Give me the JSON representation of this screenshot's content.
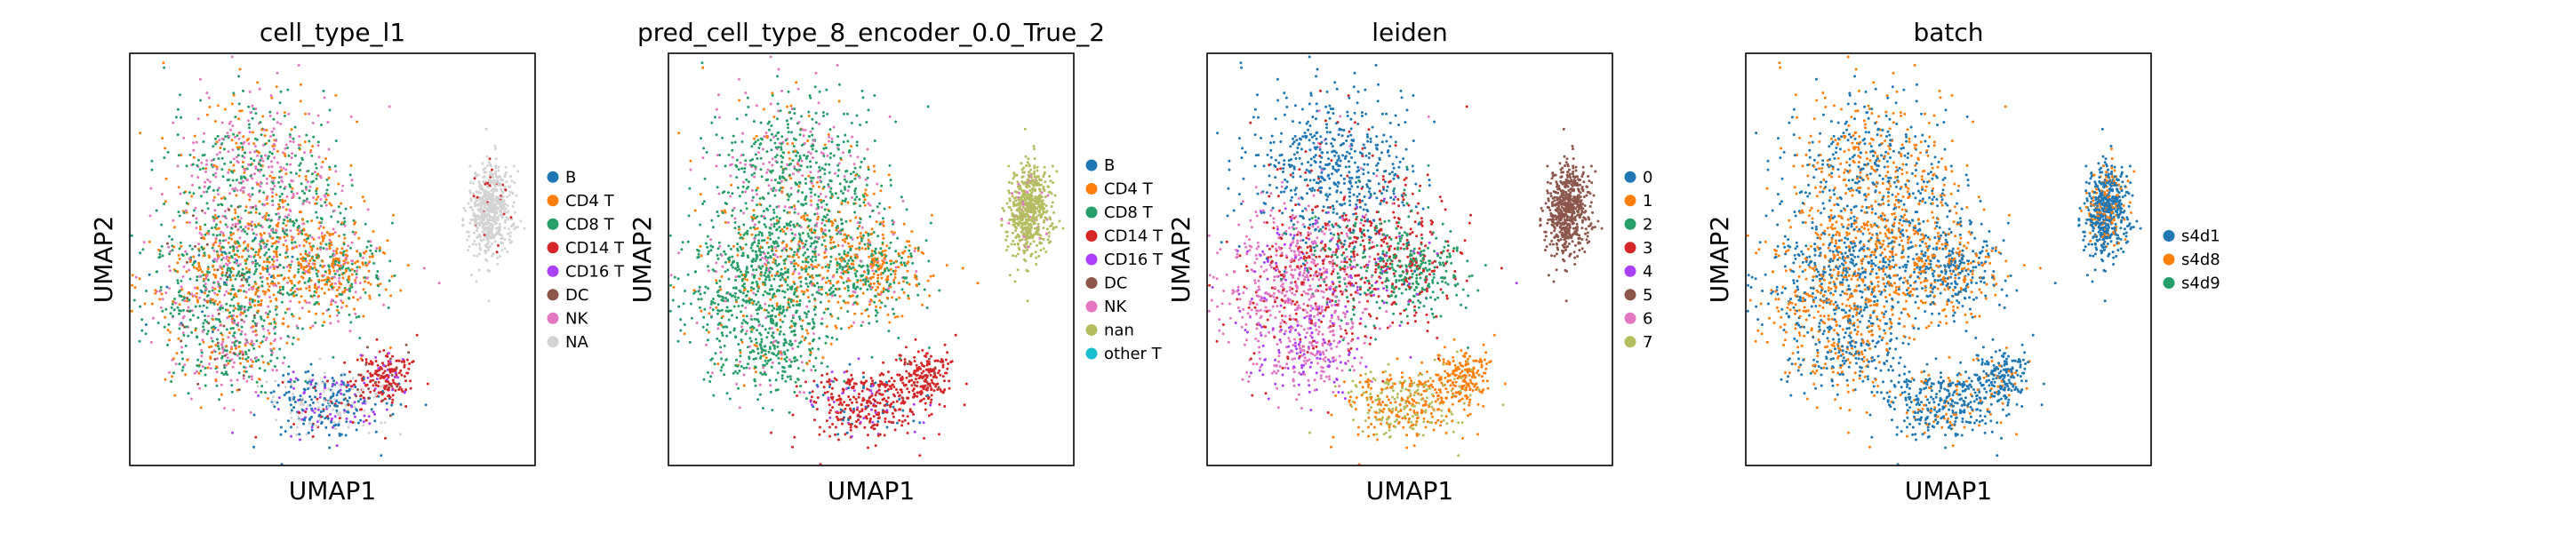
{
  "chart_data": [
    {
      "type": "scatter",
      "title": "cell_type_l1",
      "xlabel": "UMAP1",
      "ylabel": "UMAP2",
      "legend_position": "right",
      "legend": [
        {
          "label": "B",
          "color": "#1f77b4"
        },
        {
          "label": "CD4 T",
          "color": "#ff7f0e"
        },
        {
          "label": "CD8 T",
          "color": "#279e68"
        },
        {
          "label": "CD14 T",
          "color": "#d62728"
        },
        {
          "label": "CD16 T",
          "color": "#aa40fc"
        },
        {
          "label": "DC",
          "color": "#8c564b"
        },
        {
          "label": "NK",
          "color": "#e377c2"
        },
        {
          "label": "NA",
          "color": "#d3d3d3"
        }
      ]
    },
    {
      "type": "scatter",
      "title": "pred_cell_type_8_encoder_0.0_True_2",
      "xlabel": "UMAP1",
      "ylabel": "UMAP2",
      "legend_position": "right",
      "legend": [
        {
          "label": "B",
          "color": "#1f77b4"
        },
        {
          "label": "CD4 T",
          "color": "#ff7f0e"
        },
        {
          "label": "CD8 T",
          "color": "#279e68"
        },
        {
          "label": "CD14 T",
          "color": "#d62728"
        },
        {
          "label": "CD16 T",
          "color": "#aa40fc"
        },
        {
          "label": "DC",
          "color": "#8c564b"
        },
        {
          "label": "NK",
          "color": "#e377c2"
        },
        {
          "label": "nan",
          "color": "#b5bd61"
        },
        {
          "label": "other T",
          "color": "#17becf"
        }
      ]
    },
    {
      "type": "scatter",
      "title": "leiden",
      "xlabel": "UMAP1",
      "ylabel": "UMAP2",
      "legend_position": "right",
      "legend": [
        {
          "label": "0",
          "color": "#1f77b4"
        },
        {
          "label": "1",
          "color": "#ff7f0e"
        },
        {
          "label": "2",
          "color": "#279e68"
        },
        {
          "label": "3",
          "color": "#d62728"
        },
        {
          "label": "4",
          "color": "#aa40fc"
        },
        {
          "label": "5",
          "color": "#8c564b"
        },
        {
          "label": "6",
          "color": "#e377c2"
        },
        {
          "label": "7",
          "color": "#b5bd61"
        }
      ]
    },
    {
      "type": "scatter",
      "title": "batch",
      "xlabel": "UMAP1",
      "ylabel": "UMAP2",
      "legend_position": "right",
      "legend": [
        {
          "label": "s4d1",
          "color": "#1f77b4"
        },
        {
          "label": "s4d8",
          "color": "#ff7f0e"
        },
        {
          "label": "s4d9",
          "color": "#279e68"
        }
      ]
    }
  ]
}
